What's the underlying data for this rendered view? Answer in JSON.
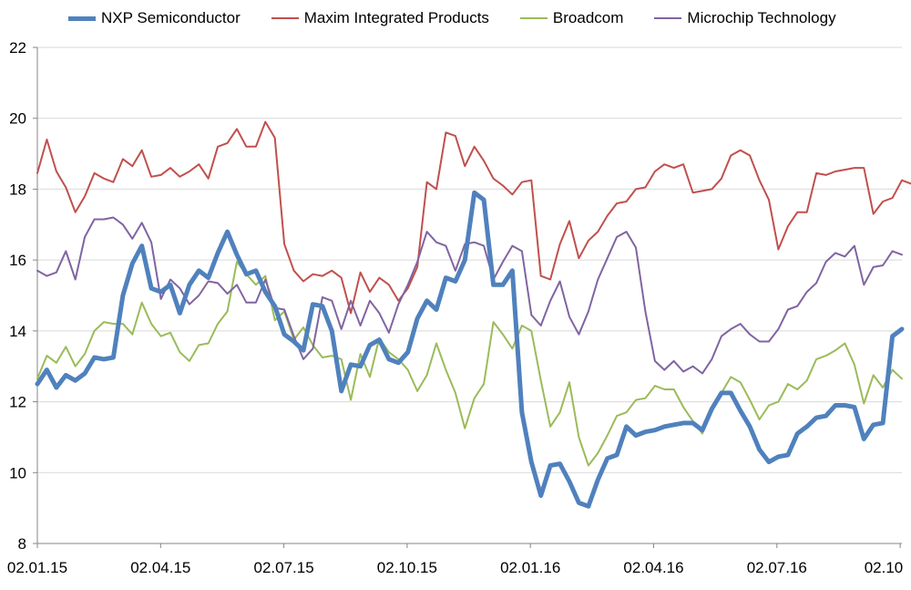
{
  "chart_data": {
    "type": "line",
    "title": "",
    "xlabel": "",
    "ylabel": "",
    "ylim": [
      8,
      22
    ],
    "yticks": [
      8,
      10,
      12,
      14,
      16,
      18,
      20,
      22
    ],
    "xticks": [
      "02.01.15",
      "02.04.15",
      "02.07.15",
      "02.10.15",
      "02.01.16",
      "02.04.16",
      "02.07.16",
      "02.10"
    ],
    "grid": "horizontal",
    "legend_position": "top",
    "series": [
      {
        "name": "NXP Semiconductor",
        "color": "#4f81bd",
        "width": 5,
        "values": [
          12.5,
          12.9,
          12.4,
          12.75,
          12.6,
          12.8,
          13.25,
          13.2,
          13.25,
          15.0,
          15.9,
          16.4,
          15.2,
          15.1,
          15.3,
          14.5,
          15.3,
          15.7,
          15.5,
          16.2,
          16.8,
          16.15,
          15.6,
          15.7,
          15.1,
          14.7,
          13.9,
          13.7,
          13.45,
          14.75,
          14.7,
          14.0,
          12.3,
          13.05,
          13.0,
          13.6,
          13.75,
          13.2,
          13.1,
          13.4,
          14.35,
          14.85,
          14.6,
          15.5,
          15.4,
          16.0,
          17.9,
          17.7,
          15.3,
          15.3,
          15.7,
          11.7,
          10.3,
          9.35,
          10.2,
          10.25,
          9.75,
          9.15,
          9.05,
          9.8,
          10.4,
          10.5,
          11.3,
          11.05,
          11.15,
          11.2,
          11.3,
          11.35,
          11.4,
          11.4,
          11.2,
          11.8,
          12.25,
          12.25,
          11.75,
          11.3,
          10.65,
          10.3,
          10.45,
          10.5,
          11.1,
          11.3,
          11.55,
          11.6,
          11.9,
          11.9,
          11.85,
          10.95,
          11.35,
          11.4,
          13.85,
          14.05
        ]
      },
      {
        "name": "Maxim Integrated Products",
        "color": "#c0504d",
        "width": 2,
        "values": [
          18.45,
          19.4,
          18.5,
          18.05,
          17.35,
          17.8,
          18.45,
          18.3,
          18.2,
          18.85,
          18.65,
          19.1,
          18.35,
          18.4,
          18.6,
          18.35,
          18.5,
          18.7,
          18.3,
          19.2,
          19.3,
          19.7,
          19.2,
          19.2,
          19.9,
          19.45,
          16.45,
          15.7,
          15.4,
          15.6,
          15.55,
          15.7,
          15.5,
          14.5,
          15.65,
          15.1,
          15.5,
          15.3,
          14.85,
          15.2,
          15.8,
          18.2,
          18.0,
          19.6,
          19.5,
          18.65,
          19.2,
          18.8,
          18.3,
          18.1,
          17.85,
          18.2,
          18.25,
          15.55,
          15.45,
          16.45,
          17.1,
          16.05,
          16.55,
          16.8,
          17.25,
          17.6,
          17.65,
          18.0,
          18.05,
          18.5,
          18.7,
          18.6,
          18.7,
          17.9,
          17.95,
          18.0,
          18.3,
          18.95,
          19.1,
          18.95,
          18.25,
          17.7,
          16.3,
          16.95,
          17.35,
          17.35,
          18.45,
          18.4,
          18.5,
          18.55,
          18.6,
          18.6,
          17.3,
          17.65,
          17.75,
          18.25,
          18.15
        ]
      },
      {
        "name": "Broadcom",
        "color": "#9bbb59",
        "width": 2,
        "values": [
          12.65,
          13.3,
          13.1,
          13.55,
          13.0,
          13.35,
          14.0,
          14.25,
          14.2,
          14.2,
          13.9,
          14.8,
          14.2,
          13.85,
          13.95,
          13.4,
          13.15,
          13.6,
          13.65,
          14.2,
          14.55,
          15.95,
          15.6,
          15.3,
          15.55,
          14.3,
          14.55,
          13.75,
          14.1,
          13.6,
          13.25,
          13.3,
          13.2,
          12.05,
          13.35,
          12.7,
          13.8,
          13.4,
          13.2,
          12.9,
          12.3,
          12.75,
          13.65,
          12.9,
          12.25,
          11.25,
          12.1,
          12.5,
          14.25,
          13.9,
          13.5,
          14.15,
          14.0,
          12.6,
          11.3,
          11.7,
          12.55,
          11.0,
          10.2,
          10.55,
          11.05,
          11.6,
          11.7,
          12.05,
          12.1,
          12.45,
          12.35,
          12.35,
          11.85,
          11.45,
          11.1,
          11.85,
          12.25,
          12.7,
          12.55,
          12.05,
          11.5,
          11.9,
          12.0,
          12.5,
          12.35,
          12.6,
          13.2,
          13.3,
          13.45,
          13.65,
          13.05,
          11.95,
          12.75,
          12.4,
          12.9,
          12.65
        ]
      },
      {
        "name": "Microchip Technology",
        "color": "#8064a2",
        "width": 2,
        "values": [
          15.7,
          15.55,
          15.65,
          16.25,
          15.45,
          16.65,
          17.15,
          17.15,
          17.2,
          17.0,
          16.6,
          17.05,
          16.5,
          14.9,
          15.45,
          15.2,
          14.75,
          15.0,
          15.4,
          15.35,
          15.05,
          15.3,
          14.8,
          14.8,
          15.45,
          14.65,
          14.6,
          13.85,
          13.2,
          13.5,
          14.95,
          14.85,
          14.05,
          14.85,
          14.15,
          14.85,
          14.5,
          13.95,
          14.75,
          15.3,
          15.95,
          16.8,
          16.5,
          16.4,
          15.7,
          16.45,
          16.5,
          16.4,
          15.45,
          15.95,
          16.4,
          16.25,
          14.45,
          14.15,
          14.85,
          15.4,
          14.4,
          13.9,
          14.55,
          15.45,
          16.05,
          16.65,
          16.8,
          16.35,
          14.55,
          13.15,
          12.9,
          13.15,
          12.85,
          13.0,
          12.8,
          13.2,
          13.85,
          14.05,
          14.2,
          13.9,
          13.7,
          13.7,
          14.05,
          14.6,
          14.7,
          15.1,
          15.35,
          15.95,
          16.2,
          16.1,
          16.4,
          15.3,
          15.8,
          15.85,
          16.25,
          16.15
        ]
      }
    ]
  }
}
